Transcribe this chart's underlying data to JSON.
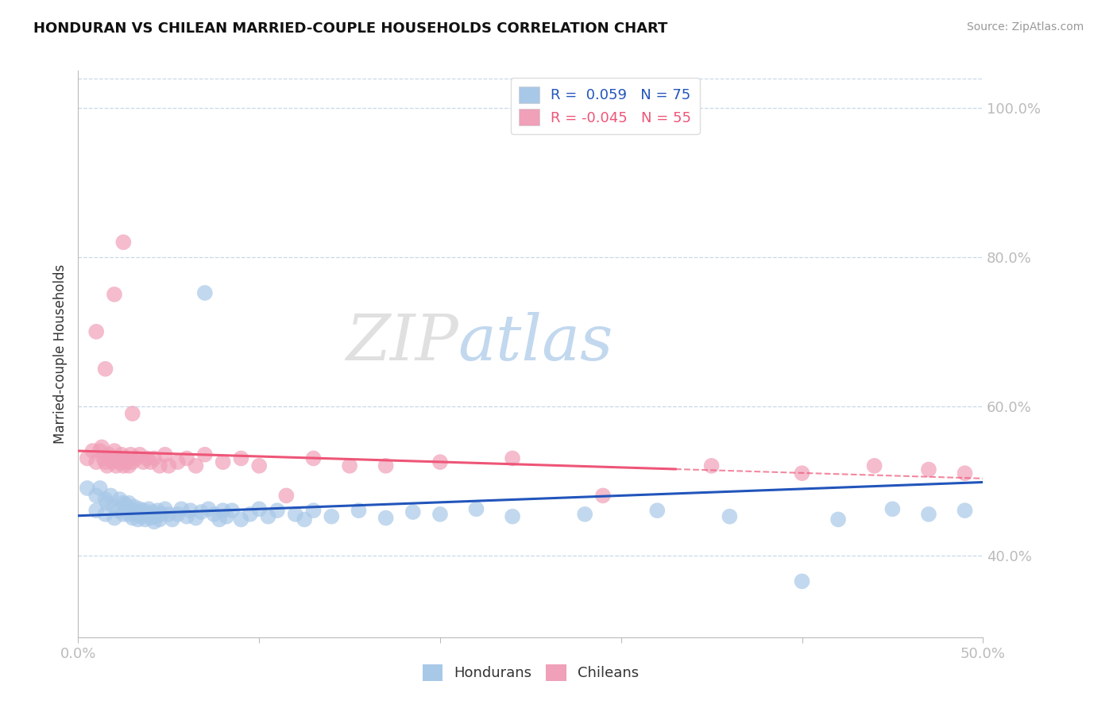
{
  "title": "HONDURAN VS CHILEAN MARRIED-COUPLE HOUSEHOLDS CORRELATION CHART",
  "source": "Source: ZipAtlas.com",
  "ylabel": "Married-couple Households",
  "ytick_labels": [
    "40.0%",
    "60.0%",
    "80.0%",
    "100.0%"
  ],
  "ytick_values": [
    0.4,
    0.6,
    0.8,
    1.0
  ],
  "xmin": 0.0,
  "xmax": 0.5,
  "ymin": 0.29,
  "ymax": 1.05,
  "legend_blue_text": "R =  0.059   N = 75",
  "legend_pink_text": "R = -0.045   N = 55",
  "watermark_zip": "ZIP",
  "watermark_atlas": "atlas",
  "blue_color": "#A8C8E8",
  "pink_color": "#F0A0B8",
  "blue_line_color": "#2255BB",
  "pink_line_color": "#EE5577",
  "axis_color": "#3366CC",
  "grid_color": "#C8D8EC",
  "blue_scatter_x": [
    0.005,
    0.01,
    0.01,
    0.012,
    0.015,
    0.015,
    0.016,
    0.018,
    0.02,
    0.02,
    0.022,
    0.023,
    0.025,
    0.025,
    0.026,
    0.027,
    0.028,
    0.028,
    0.03,
    0.03,
    0.031,
    0.032,
    0.033,
    0.034,
    0.035,
    0.036,
    0.037,
    0.038,
    0.039,
    0.04,
    0.041,
    0.042,
    0.043,
    0.044,
    0.045,
    0.046,
    0.048,
    0.05,
    0.052,
    0.055,
    0.057,
    0.06,
    0.062,
    0.065,
    0.068,
    0.07,
    0.072,
    0.075,
    0.078,
    0.08,
    0.082,
    0.085,
    0.09,
    0.095,
    0.1,
    0.105,
    0.11,
    0.12,
    0.125,
    0.13,
    0.14,
    0.155,
    0.17,
    0.185,
    0.2,
    0.22,
    0.24,
    0.28,
    0.32,
    0.36,
    0.4,
    0.42,
    0.45,
    0.47,
    0.49
  ],
  "blue_scatter_y": [
    0.49,
    0.48,
    0.46,
    0.49,
    0.475,
    0.455,
    0.47,
    0.48,
    0.465,
    0.45,
    0.46,
    0.475,
    0.47,
    0.455,
    0.468,
    0.462,
    0.455,
    0.47,
    0.46,
    0.45,
    0.465,
    0.455,
    0.448,
    0.462,
    0.452,
    0.46,
    0.448,
    0.455,
    0.462,
    0.45,
    0.458,
    0.445,
    0.452,
    0.46,
    0.448,
    0.455,
    0.462,
    0.455,
    0.448,
    0.455,
    0.462,
    0.452,
    0.46,
    0.45,
    0.458,
    0.752,
    0.462,
    0.455,
    0.448,
    0.46,
    0.452,
    0.46,
    0.448,
    0.455,
    0.462,
    0.452,
    0.46,
    0.455,
    0.448,
    0.46,
    0.452,
    0.46,
    0.45,
    0.458,
    0.455,
    0.462,
    0.452,
    0.455,
    0.46,
    0.452,
    0.365,
    0.448,
    0.462,
    0.455,
    0.46
  ],
  "pink_scatter_x": [
    0.005,
    0.008,
    0.01,
    0.012,
    0.013,
    0.014,
    0.015,
    0.016,
    0.017,
    0.018,
    0.019,
    0.02,
    0.021,
    0.022,
    0.023,
    0.024,
    0.025,
    0.026,
    0.027,
    0.028,
    0.029,
    0.03,
    0.032,
    0.034,
    0.036,
    0.038,
    0.04,
    0.042,
    0.045,
    0.048,
    0.05,
    0.055,
    0.06,
    0.065,
    0.07,
    0.08,
    0.09,
    0.1,
    0.115,
    0.13,
    0.15,
    0.17,
    0.2,
    0.24,
    0.29,
    0.35,
    0.4,
    0.44,
    0.47,
    0.49,
    0.01,
    0.015,
    0.02,
    0.025,
    0.03
  ],
  "pink_scatter_y": [
    0.53,
    0.54,
    0.525,
    0.54,
    0.545,
    0.53,
    0.525,
    0.52,
    0.535,
    0.53,
    0.525,
    0.54,
    0.52,
    0.53,
    0.525,
    0.535,
    0.52,
    0.53,
    0.525,
    0.52,
    0.535,
    0.525,
    0.53,
    0.535,
    0.525,
    0.53,
    0.525,
    0.53,
    0.52,
    0.535,
    0.52,
    0.525,
    0.53,
    0.52,
    0.535,
    0.525,
    0.53,
    0.52,
    0.48,
    0.53,
    0.52,
    0.52,
    0.525,
    0.53,
    0.48,
    0.52,
    0.51,
    0.52,
    0.515,
    0.51,
    0.7,
    0.65,
    0.75,
    0.82,
    0.59
  ]
}
